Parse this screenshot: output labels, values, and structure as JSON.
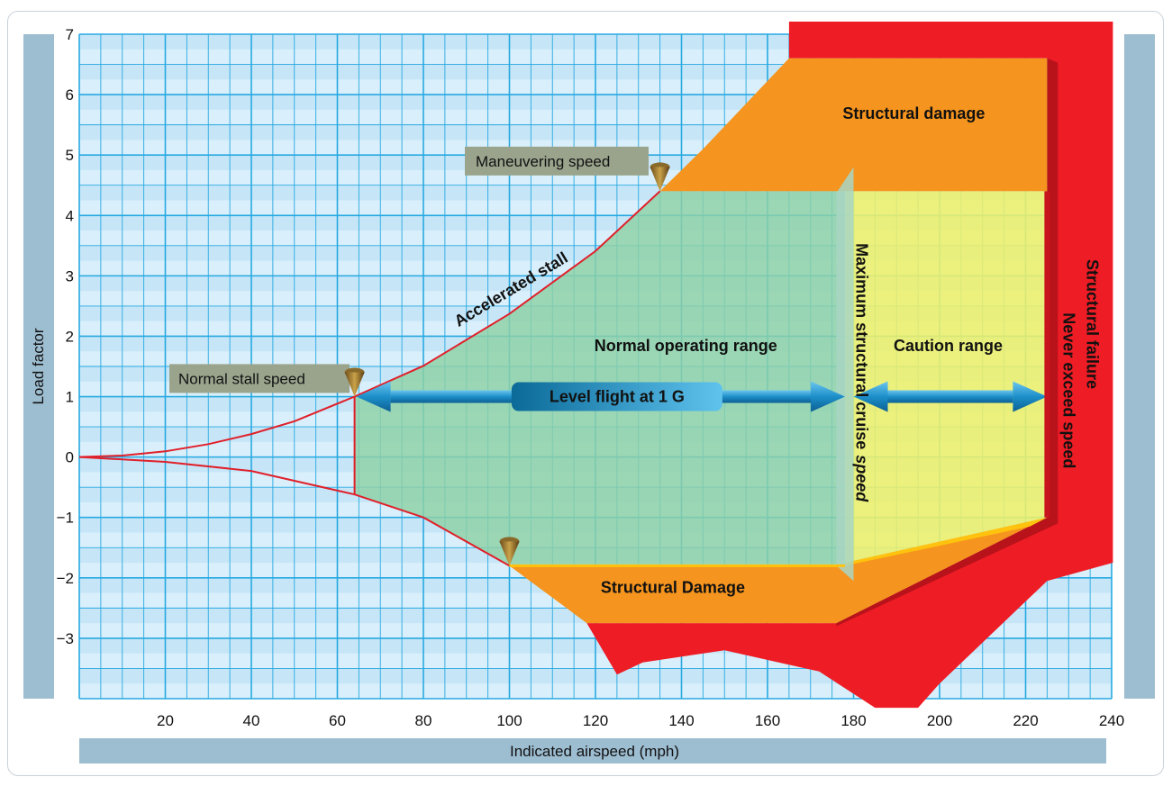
{
  "chart_data": {
    "type": "area",
    "xlabel": "Indicated airspeed (mph)",
    "ylabel": "Load factor",
    "xlim": [
      0,
      240
    ],
    "ylim": [
      -4,
      7
    ],
    "x_ticks": [
      20,
      40,
      60,
      80,
      100,
      120,
      140,
      160,
      180,
      200,
      220,
      240
    ],
    "y_ticks": [
      7,
      6,
      5,
      4,
      3,
      2,
      1,
      0,
      -1,
      -2,
      -3
    ],
    "y_tick_labels": [
      "7",
      "6",
      "5",
      "4",
      "3",
      "2",
      "1",
      "0",
      "−1",
      "−2",
      "−3"
    ],
    "grid": true,
    "curves": {
      "positive_stall": [
        [
          0,
          0
        ],
        [
          10,
          0.024
        ],
        [
          20,
          0.095
        ],
        [
          30,
          0.214
        ],
        [
          40,
          0.38
        ],
        [
          50,
          0.593
        ],
        [
          64,
          1.0
        ],
        [
          80,
          1.51
        ],
        [
          100,
          2.37
        ],
        [
          120,
          3.41
        ],
        [
          135,
          4.4
        ]
      ],
      "negative_stall": [
        [
          0,
          0
        ],
        [
          20,
          -0.08
        ],
        [
          40,
          -0.23
        ],
        [
          64,
          -0.62
        ],
        [
          80,
          -1.0
        ],
        [
          100,
          -1.8
        ]
      ]
    },
    "speeds": {
      "normal_stall": 64,
      "maneuvering": 135,
      "max_structural_cruise": 178,
      "never_exceed": 225
    },
    "limits": {
      "positive": 4.4,
      "negative": -1.8,
      "negative_at_vne": -1.0,
      "ultimate_positive": 6.6,
      "ultimate_negative": -2.75
    },
    "labels": {
      "maneuvering_speed": "Maneuvering speed",
      "normal_stall_speed": "Normal stall speed",
      "accelerated_stall": "Accelerated stall",
      "normal_operating_range": "Normal operating range",
      "caution_range": "Caution range",
      "level_flight": "Level flight at 1 G",
      "max_structural_cruise_a": "Maximum structural cruise",
      "max_structural_cruise_b": "speed",
      "never_exceed_speed": "Never exceed speed",
      "structural_failure": "Structural  failure",
      "structural_damage_top": "Structural damage",
      "structural_damage_bottom": "Structural Damage"
    },
    "colors": {
      "background": "#c6e6f8",
      "grid": "#27a9e1",
      "normal_range": "#8ed1a5",
      "caution": "#eef06a",
      "damage": "#f5941e",
      "failure": "#ee1c25",
      "stall_line": "#e0202a",
      "arrow": "#1d8fc9",
      "axis_bar": "#9dbdd1"
    }
  }
}
